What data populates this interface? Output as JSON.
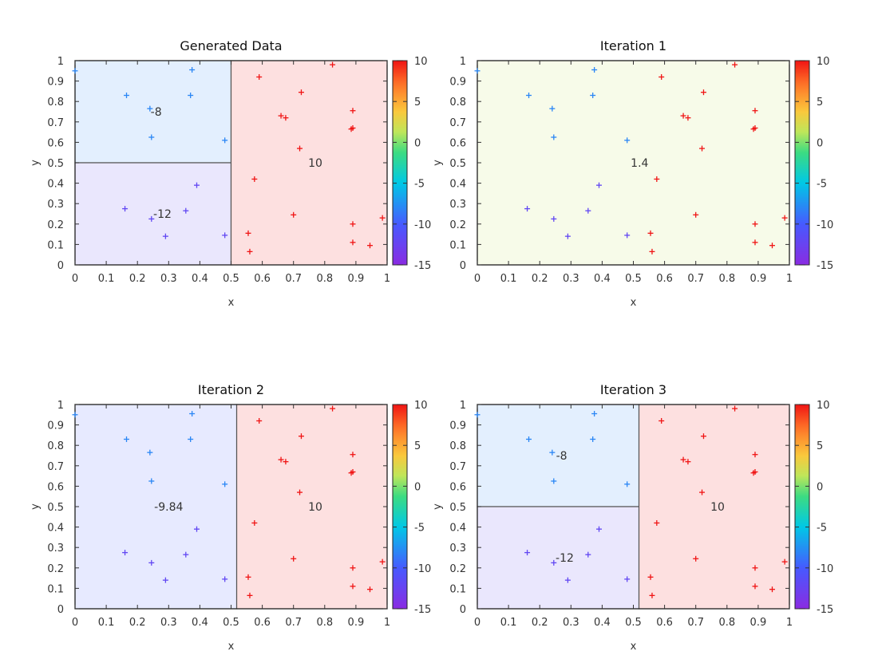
{
  "chart_data": [
    {
      "type": "scatter",
      "title": "Generated Data",
      "xlabel": "x",
      "ylabel": "y",
      "xlim": [
        0,
        1
      ],
      "ylim": [
        0,
        1
      ],
      "xticks": [
        "0",
        "0.1",
        "0.2",
        "0.3",
        "0.4",
        "0.5",
        "0.6",
        "0.7",
        "0.8",
        "0.9",
        "1"
      ],
      "yticks": [
        "0",
        "0.1",
        "0.2",
        "0.3",
        "0.4",
        "0.5",
        "0.6",
        "0.7",
        "0.8",
        "0.9",
        "1"
      ],
      "colorbar": {
        "min": -15,
        "max": 10,
        "ticks": [
          "10",
          "5",
          "0",
          "-5",
          "-10",
          "-15"
        ]
      },
      "regions": [
        {
          "x": [
            0,
            0.5
          ],
          "y": [
            0.5,
            1
          ],
          "value": -8,
          "label": "-8",
          "label_at": [
            0.26,
            0.75
          ]
        },
        {
          "x": [
            0,
            0.5
          ],
          "y": [
            0,
            0.5
          ],
          "value": -12,
          "label": "-12",
          "label_at": [
            0.28,
            0.25
          ]
        },
        {
          "x": [
            0.5,
            1
          ],
          "y": [
            0,
            1
          ],
          "value": 10,
          "label": "10",
          "label_at": [
            0.77,
            0.5
          ]
        }
      ],
      "points": [
        {
          "x": 0.0,
          "y": 0.95,
          "v": -8
        },
        {
          "x": 0.165,
          "y": 0.83,
          "v": -8
        },
        {
          "x": 0.24,
          "y": 0.765,
          "v": -8
        },
        {
          "x": 0.245,
          "y": 0.625,
          "v": -8
        },
        {
          "x": 0.375,
          "y": 0.955,
          "v": -8
        },
        {
          "x": 0.37,
          "y": 0.83,
          "v": -8
        },
        {
          "x": 0.48,
          "y": 0.61,
          "v": -8
        },
        {
          "x": 0.16,
          "y": 0.275,
          "v": -12
        },
        {
          "x": 0.245,
          "y": 0.225,
          "v": -12
        },
        {
          "x": 0.29,
          "y": 0.14,
          "v": -12
        },
        {
          "x": 0.355,
          "y": 0.265,
          "v": -12
        },
        {
          "x": 0.39,
          "y": 0.39,
          "v": -12
        },
        {
          "x": 0.48,
          "y": 0.145,
          "v": -12
        },
        {
          "x": 0.59,
          "y": 0.92,
          "v": 10
        },
        {
          "x": 0.825,
          "y": 0.98,
          "v": 10
        },
        {
          "x": 0.725,
          "y": 0.845,
          "v": 10
        },
        {
          "x": 0.66,
          "y": 0.73,
          "v": 10
        },
        {
          "x": 0.675,
          "y": 0.72,
          "v": 10
        },
        {
          "x": 0.89,
          "y": 0.755,
          "v": 10
        },
        {
          "x": 0.885,
          "y": 0.665,
          "v": 10
        },
        {
          "x": 0.89,
          "y": 0.67,
          "v": 10
        },
        {
          "x": 0.72,
          "y": 0.57,
          "v": 10
        },
        {
          "x": 0.575,
          "y": 0.42,
          "v": 10
        },
        {
          "x": 0.7,
          "y": 0.245,
          "v": 10
        },
        {
          "x": 0.555,
          "y": 0.155,
          "v": 10
        },
        {
          "x": 0.56,
          "y": 0.065,
          "v": 10
        },
        {
          "x": 0.89,
          "y": 0.2,
          "v": 10
        },
        {
          "x": 0.89,
          "y": 0.11,
          "v": 10
        },
        {
          "x": 0.945,
          "y": 0.095,
          "v": 10
        },
        {
          "x": 0.985,
          "y": 0.23,
          "v": 10
        }
      ]
    },
    {
      "type": "scatter",
      "title": "Iteration 1",
      "xlabel": "x",
      "ylabel": "y",
      "xlim": [
        0,
        1
      ],
      "ylim": [
        0,
        1
      ],
      "xticks": [
        "0",
        "0.1",
        "0.2",
        "0.3",
        "0.4",
        "0.5",
        "0.6",
        "0.7",
        "0.8",
        "0.9",
        "1"
      ],
      "yticks": [
        "0",
        "0.1",
        "0.2",
        "0.3",
        "0.4",
        "0.5",
        "0.6",
        "0.7",
        "0.8",
        "0.9",
        "1"
      ],
      "colorbar": {
        "min": -15,
        "max": 10,
        "ticks": [
          "10",
          "5",
          "0",
          "-5",
          "-10",
          "-15"
        ]
      },
      "regions": [
        {
          "x": [
            0,
            1
          ],
          "y": [
            0,
            1
          ],
          "value": 1.4,
          "label": "1.4",
          "label_at": [
            0.52,
            0.5
          ]
        }
      ],
      "points": "same as Generated Data"
    },
    {
      "type": "scatter",
      "title": "Iteration 2",
      "xlabel": "x",
      "ylabel": "y",
      "xlim": [
        0,
        1
      ],
      "ylim": [
        0,
        1
      ],
      "xticks": [
        "0",
        "0.1",
        "0.2",
        "0.3",
        "0.4",
        "0.5",
        "0.6",
        "0.7",
        "0.8",
        "0.9",
        "1"
      ],
      "yticks": [
        "0",
        "0.1",
        "0.2",
        "0.3",
        "0.4",
        "0.5",
        "0.6",
        "0.7",
        "0.8",
        "0.9",
        "1"
      ],
      "colorbar": {
        "min": -15,
        "max": 10,
        "ticks": [
          "10",
          "5",
          "0",
          "-5",
          "-10",
          "-15"
        ]
      },
      "regions": [
        {
          "x": [
            0,
            0.518
          ],
          "y": [
            0,
            1
          ],
          "value": -9.84,
          "label": "-9.84",
          "label_at": [
            0.3,
            0.5
          ]
        },
        {
          "x": [
            0.518,
            1
          ],
          "y": [
            0,
            1
          ],
          "value": 10,
          "label": "10",
          "label_at": [
            0.77,
            0.5
          ]
        }
      ],
      "points": "same as Generated Data"
    },
    {
      "type": "scatter",
      "title": "Iteration 3",
      "xlabel": "x",
      "ylabel": "y",
      "xlim": [
        0,
        1
      ],
      "ylim": [
        0,
        1
      ],
      "xticks": [
        "0",
        "0.1",
        "0.2",
        "0.3",
        "0.4",
        "0.5",
        "0.6",
        "0.7",
        "0.8",
        "0.9",
        "1"
      ],
      "yticks": [
        "0",
        "0.1",
        "0.2",
        "0.3",
        "0.4",
        "0.5",
        "0.6",
        "0.7",
        "0.8",
        "0.9",
        "1"
      ],
      "colorbar": {
        "min": -15,
        "max": 10,
        "ticks": [
          "10",
          "5",
          "0",
          "-5",
          "-10",
          "-15"
        ]
      },
      "regions": [
        {
          "x": [
            0,
            0.518
          ],
          "y": [
            0.5,
            1
          ],
          "value": -8,
          "label": "-8",
          "label_at": [
            0.27,
            0.75
          ]
        },
        {
          "x": [
            0,
            0.518
          ],
          "y": [
            0,
            0.5
          ],
          "value": -12,
          "label": "-12",
          "label_at": [
            0.28,
            0.25
          ]
        },
        {
          "x": [
            0.518,
            1
          ],
          "y": [
            0,
            1
          ],
          "value": 10,
          "label": "10",
          "label_at": [
            0.77,
            0.5
          ]
        }
      ],
      "points": "same as Generated Data"
    }
  ]
}
